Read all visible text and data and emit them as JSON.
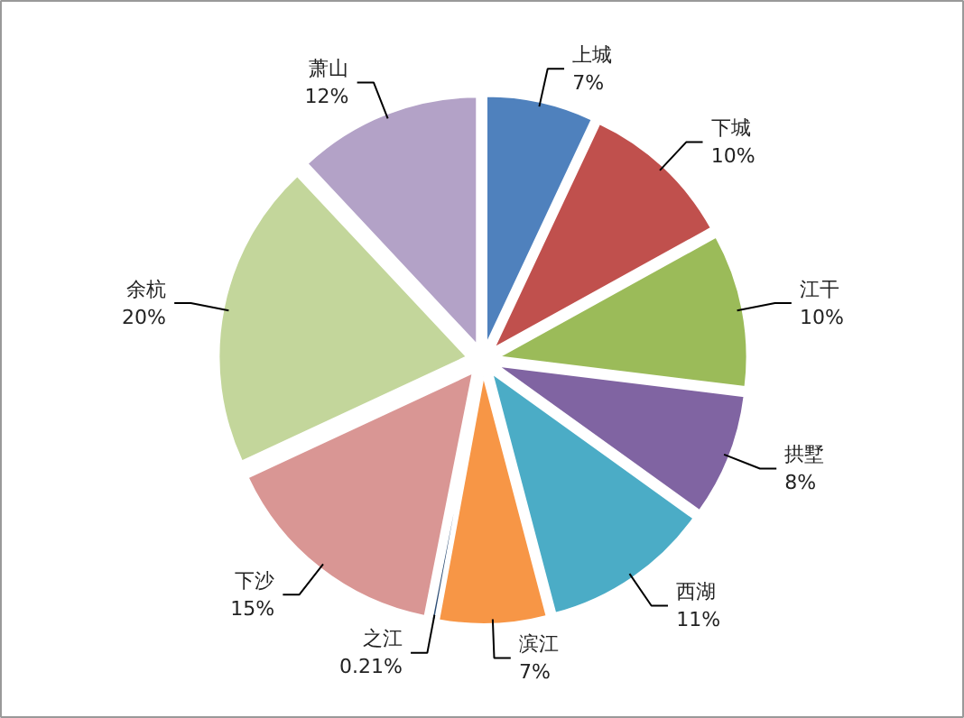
{
  "chart_data": {
    "type": "pie",
    "categories": [
      "上城",
      "下城",
      "江干",
      "拱墅",
      "西湖",
      "滨江",
      "之江",
      "下沙",
      "余杭",
      "萧山"
    ],
    "values": [
      7,
      10,
      10,
      8,
      11,
      7,
      0.21,
      15,
      20,
      12
    ],
    "value_labels": [
      "7%",
      "10%",
      "10%",
      "8%",
      "11%",
      "7%",
      "0.21%",
      "15%",
      "20%",
      "12%"
    ],
    "colors": [
      "#4f81bd",
      "#c0504d",
      "#9bbb59",
      "#8064a2",
      "#4bacc6",
      "#f79646",
      "#2c4d75",
      "#d99694",
      "#c3d69b",
      "#b3a2c7"
    ]
  }
}
